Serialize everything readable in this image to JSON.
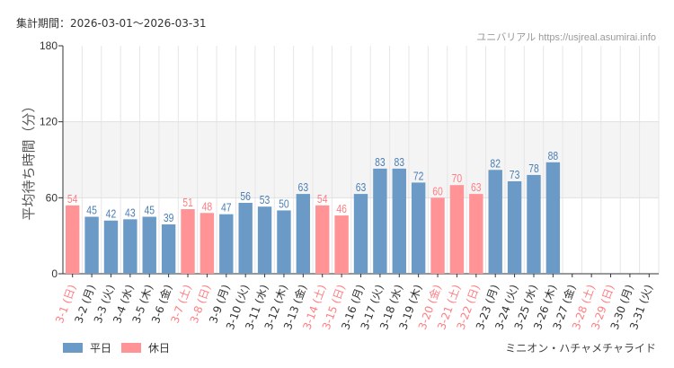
{
  "header": {
    "period": "集計期間：2026-03-01〜2026-03-31",
    "credit": "ユニバリアル https://usjreal.asumirai.info"
  },
  "attraction": "ミニオン・ハチャメチャライド",
  "colors": {
    "weekday": "#6b9ac6",
    "holiday": "#ff9396",
    "weekday_text": "#4a7fb5",
    "holiday_text": "#ff7d82",
    "band": "#f4f4f4"
  },
  "chart_data": {
    "type": "bar",
    "ylabel": "平均待ち時間（分）",
    "ylim": [
      0,
      180
    ],
    "yticks": [
      0,
      60,
      120,
      180
    ],
    "shaded_band": [
      60,
      120
    ],
    "grid": "vertical",
    "legend_position": "bottom-left",
    "legend": [
      {
        "name": "平日",
        "key": "weekday"
      },
      {
        "name": "休日",
        "key": "holiday"
      }
    ],
    "categories": [
      "3-1 (日)",
      "3-2 (月)",
      "3-3 (火)",
      "3-4 (水)",
      "3-5 (木)",
      "3-6 (金)",
      "3-7 (土)",
      "3-8 (日)",
      "3-9 (月)",
      "3-10 (火)",
      "3-11 (水)",
      "3-12 (木)",
      "3-13 (金)",
      "3-14 (土)",
      "3-15 (日)",
      "3-16 (月)",
      "3-17 (火)",
      "3-18 (水)",
      "3-19 (木)",
      "3-20 (金)",
      "3-21 (土)",
      "3-22 (日)",
      "3-23 (月)",
      "3-24 (火)",
      "3-25 (水)",
      "3-26 (木)",
      "3-27 (金)",
      "3-28 (土)",
      "3-29 (日)",
      "3-30 (月)",
      "3-31 (火)"
    ],
    "holiday": [
      true,
      false,
      false,
      false,
      false,
      false,
      true,
      true,
      false,
      false,
      false,
      false,
      false,
      true,
      true,
      false,
      false,
      false,
      false,
      true,
      true,
      true,
      false,
      false,
      false,
      false,
      false,
      true,
      true,
      false,
      false
    ],
    "values": [
      54,
      45,
      42,
      43,
      45,
      39,
      51,
      48,
      47,
      56,
      53,
      50,
      63,
      54,
      46,
      63,
      83,
      83,
      72,
      60,
      70,
      63,
      82,
      73,
      78,
      88,
      null,
      null,
      null,
      null,
      null
    ]
  }
}
